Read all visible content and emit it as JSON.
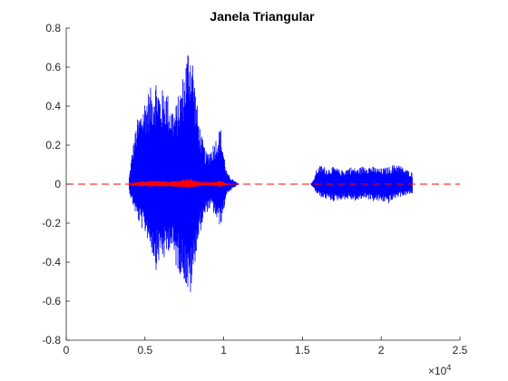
{
  "chart_data": {
    "type": "line",
    "title": "Janela Triangular",
    "xlabel": "",
    "ylabel": "",
    "xlim": [
      0,
      25000
    ],
    "ylim": [
      -0.8,
      0.8
    ],
    "x_ticks": [
      0,
      5000,
      10000,
      15000,
      20000,
      25000
    ],
    "x_tick_labels": [
      "0",
      "0.5",
      "1",
      "1.5",
      "2",
      "2.5"
    ],
    "x_exponent_label": "×10",
    "x_exponent_power": "4",
    "y_ticks": [
      -0.8,
      -0.6,
      -0.4,
      -0.2,
      0,
      0.2,
      0.4,
      0.6,
      0.8
    ],
    "y_tick_labels": [
      "-0.8",
      "-0.6",
      "-0.4",
      "-0.2",
      "0",
      "0.2",
      "0.4",
      "0.6",
      "0.8"
    ],
    "grid": false,
    "series": [
      {
        "color": "#0000ff",
        "style": "solid",
        "envelope": [
          {
            "x": 4000,
            "max": 0.04,
            "min": -0.04
          },
          {
            "x": 4200,
            "max": 0.18,
            "min": -0.1
          },
          {
            "x": 4500,
            "max": 0.33,
            "min": -0.18
          },
          {
            "x": 4800,
            "max": 0.4,
            "min": -0.23
          },
          {
            "x": 5100,
            "max": 0.47,
            "min": -0.27
          },
          {
            "x": 5400,
            "max": 0.5,
            "min": -0.34
          },
          {
            "x": 5700,
            "max": 0.56,
            "min": -0.44
          },
          {
            "x": 6000,
            "max": 0.47,
            "min": -0.38
          },
          {
            "x": 6300,
            "max": 0.52,
            "min": -0.4
          },
          {
            "x": 6600,
            "max": 0.42,
            "min": -0.32
          },
          {
            "x": 6900,
            "max": 0.39,
            "min": -0.42
          },
          {
            "x": 7200,
            "max": 0.48,
            "min": -0.46
          },
          {
            "x": 7500,
            "max": 0.6,
            "min": -0.5
          },
          {
            "x": 7800,
            "max": 0.76,
            "min": -0.6
          },
          {
            "x": 8000,
            "max": 0.7,
            "min": -0.55
          },
          {
            "x": 8200,
            "max": 0.5,
            "min": -0.38
          },
          {
            "x": 8400,
            "max": 0.35,
            "min": -0.3
          },
          {
            "x": 8600,
            "max": 0.25,
            "min": -0.22
          },
          {
            "x": 8900,
            "max": 0.16,
            "min": -0.15
          },
          {
            "x": 9200,
            "max": 0.19,
            "min": -0.12
          },
          {
            "x": 9500,
            "max": 0.24,
            "min": -0.18
          },
          {
            "x": 9800,
            "max": 0.3,
            "min": -0.22
          },
          {
            "x": 10000,
            "max": 0.17,
            "min": -0.14
          },
          {
            "x": 10200,
            "max": 0.06,
            "min": -0.05
          },
          {
            "x": 10500,
            "max": 0.03,
            "min": -0.03
          },
          {
            "x": 10800,
            "max": 0.01,
            "min": -0.01
          },
          {
            "x": 11000,
            "max": 0.0,
            "min": 0.0
          },
          {
            "x": 15500,
            "max": 0.0,
            "min": 0.0
          },
          {
            "x": 15700,
            "max": 0.02,
            "min": -0.02
          },
          {
            "x": 15900,
            "max": 0.08,
            "min": -0.05
          },
          {
            "x": 16200,
            "max": 0.1,
            "min": -0.07
          },
          {
            "x": 16600,
            "max": 0.08,
            "min": -0.08
          },
          {
            "x": 17000,
            "max": 0.09,
            "min": -0.09
          },
          {
            "x": 17500,
            "max": 0.07,
            "min": -0.08
          },
          {
            "x": 18000,
            "max": 0.09,
            "min": -0.08
          },
          {
            "x": 18500,
            "max": 0.08,
            "min": -0.09
          },
          {
            "x": 19000,
            "max": 0.1,
            "min": -0.07
          },
          {
            "x": 19500,
            "max": 0.09,
            "min": -0.09
          },
          {
            "x": 20000,
            "max": 0.08,
            "min": -0.09
          },
          {
            "x": 20500,
            "max": 0.09,
            "min": -0.1
          },
          {
            "x": 21000,
            "max": 0.11,
            "min": -0.07
          },
          {
            "x": 21500,
            "max": 0.08,
            "min": -0.06
          },
          {
            "x": 22000,
            "max": 0.06,
            "min": -0.05
          }
        ]
      },
      {
        "color": "#ff0000",
        "style": "dashed",
        "x": [
          0,
          25000
        ],
        "y": [
          0,
          0
        ]
      },
      {
        "color": "#ff0000",
        "style": "solid",
        "envelope": [
          {
            "x": 4000,
            "max": 0.005,
            "min": -0.005
          },
          {
            "x": 4500,
            "max": 0.012,
            "min": -0.01
          },
          {
            "x": 5000,
            "max": 0.015,
            "min": -0.012
          },
          {
            "x": 5500,
            "max": 0.018,
            "min": -0.014
          },
          {
            "x": 6000,
            "max": 0.016,
            "min": -0.013
          },
          {
            "x": 6500,
            "max": 0.014,
            "min": -0.012
          },
          {
            "x": 7000,
            "max": 0.018,
            "min": -0.015
          },
          {
            "x": 7500,
            "max": 0.025,
            "min": -0.018
          },
          {
            "x": 7800,
            "max": 0.03,
            "min": -0.022
          },
          {
            "x": 8200,
            "max": 0.02,
            "min": -0.016
          },
          {
            "x": 8600,
            "max": 0.012,
            "min": -0.01
          },
          {
            "x": 9200,
            "max": 0.01,
            "min": -0.008
          },
          {
            "x": 9800,
            "max": 0.02,
            "min": -0.015
          },
          {
            "x": 10200,
            "max": 0.004,
            "min": -0.004
          },
          {
            "x": 11000,
            "max": 0.0,
            "min": 0.0
          }
        ]
      }
    ]
  }
}
